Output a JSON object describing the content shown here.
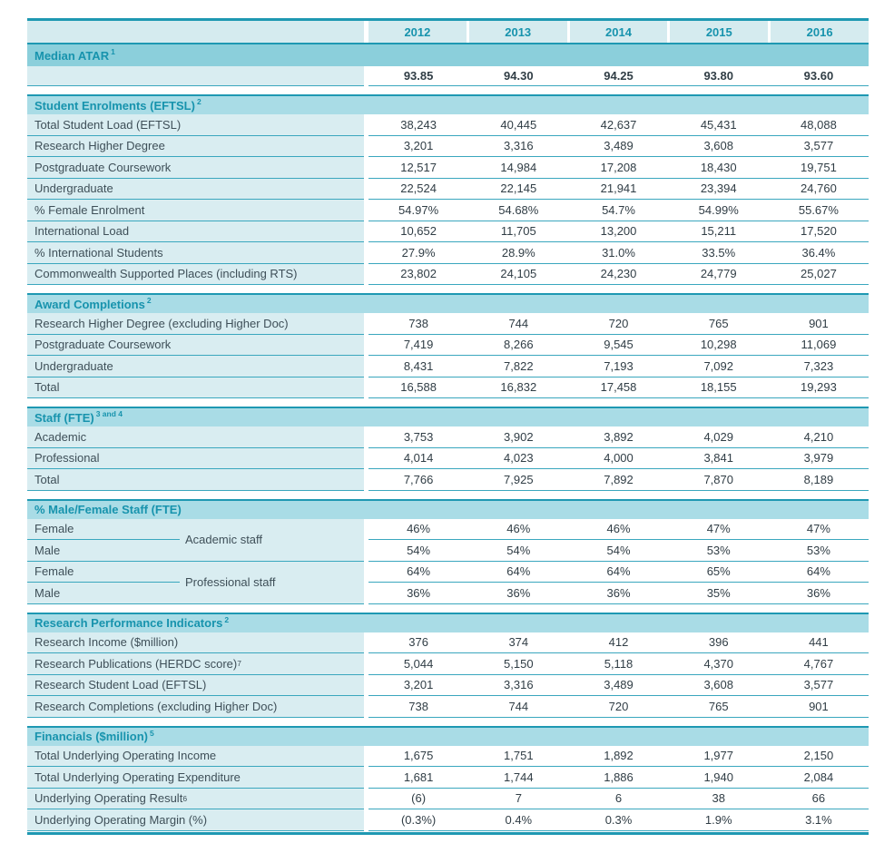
{
  "colors": {
    "dark": "#1e98b2",
    "sep": "#3aa7be",
    "atarBand": "#8bcfdb",
    "band": "#a9dce6",
    "labelBg": "#d9edf1",
    "headerBg": "#d5ebef",
    "teal": "#1793ad",
    "labelText": "#3e4f58",
    "valText": "#303d45"
  },
  "years": [
    "2012",
    "2013",
    "2014",
    "2015",
    "2016"
  ],
  "sections": [
    {
      "title": "Median ATAR",
      "sup": "1",
      "variant": "atar",
      "rows": [
        {
          "label": "",
          "values": [
            "93.85",
            "94.30",
            "94.25",
            "93.80",
            "93.60"
          ],
          "bold": true
        }
      ]
    },
    {
      "title": "Student Enrolments (EFTSL)",
      "sup": "2",
      "rows": [
        {
          "label": "Total Student Load (EFTSL)",
          "values": [
            "38,243",
            "40,445",
            "42,637",
            "45,431",
            "48,088"
          ]
        },
        {
          "label": "Research Higher Degree",
          "values": [
            "3,201",
            "3,316",
            "3,489",
            "3,608",
            "3,577"
          ]
        },
        {
          "label": "Postgraduate Coursework",
          "values": [
            "12,517",
            "14,984",
            "17,208",
            "18,430",
            "19,751"
          ]
        },
        {
          "label": "Undergraduate",
          "values": [
            "22,524",
            "22,145",
            "21,941",
            "23,394",
            "24,760"
          ]
        },
        {
          "label": "% Female Enrolment",
          "values": [
            "54.97%",
            "54.68%",
            "54.7%",
            "54.99%",
            "55.67%"
          ]
        },
        {
          "label": "International Load",
          "values": [
            "10,652",
            "11,705",
            "13,200",
            "15,211",
            "17,520"
          ]
        },
        {
          "label": "% International Students",
          "values": [
            "27.9%",
            "28.9%",
            "31.0%",
            "33.5%",
            "36.4%"
          ]
        },
        {
          "label": "Commonwealth Supported Places (including RTS)",
          "values": [
            "23,802",
            "24,105",
            "24,230",
            "24,779",
            "25,027"
          ]
        }
      ]
    },
    {
      "title": "Award Completions",
      "sup": "2",
      "rows": [
        {
          "label": "Research Higher Degree (excluding Higher Doc)",
          "values": [
            "738",
            "744",
            "720",
            "765",
            "901"
          ]
        },
        {
          "label": "Postgraduate Coursework",
          "values": [
            "7,419",
            "8,266",
            "9,545",
            "10,298",
            "11,069"
          ]
        },
        {
          "label": "Undergraduate",
          "values": [
            "8,431",
            "7,822",
            "7,193",
            "7,092",
            "7,323"
          ]
        },
        {
          "label": "Total",
          "values": [
            "16,588",
            "16,832",
            "17,458",
            "18,155",
            "19,293"
          ]
        }
      ]
    },
    {
      "title": "Staff (FTE)",
      "sup": "3 and 4",
      "rows": [
        {
          "label": "Academic",
          "values": [
            "3,753",
            "3,902",
            "3,892",
            "4,029",
            "4,210"
          ]
        },
        {
          "label": "Professional",
          "values": [
            "4,014",
            "4,023",
            "4,000",
            "3,841",
            "3,979"
          ]
        },
        {
          "label": "Total",
          "values": [
            "7,766",
            "7,925",
            "7,892",
            "7,870",
            "8,189"
          ]
        }
      ]
    },
    {
      "title": "% Male/Female Staff (FTE)",
      "sup": "",
      "grouped": true,
      "groups": [
        {
          "name": "Academic staff",
          "rows": [
            {
              "label": "Female",
              "values": [
                "46%",
                "46%",
                "46%",
                "47%",
                "47%"
              ]
            },
            {
              "label": "Male",
              "values": [
                "54%",
                "54%",
                "54%",
                "53%",
                "53%"
              ]
            }
          ]
        },
        {
          "name": "Professional staff",
          "rows": [
            {
              "label": "Female",
              "values": [
                "64%",
                "64%",
                "64%",
                "65%",
                "64%"
              ]
            },
            {
              "label": "Male",
              "values": [
                "36%",
                "36%",
                "36%",
                "35%",
                "36%"
              ]
            }
          ]
        }
      ]
    },
    {
      "title": "Research Performance Indicators",
      "sup": "2",
      "rows": [
        {
          "label": "Research Income  ($million)",
          "values": [
            "376",
            "374",
            "412",
            "396",
            "441"
          ]
        },
        {
          "label": "Research Publications (HERDC score)",
          "sup": "7",
          "values": [
            "5,044",
            "5,150",
            "5,118",
            "4,370",
            "4,767"
          ]
        },
        {
          "label": "Research Student Load  (EFTSL)",
          "values": [
            "3,201",
            "3,316",
            "3,489",
            "3,608",
            "3,577"
          ]
        },
        {
          "label": "Research Completions (excluding Higher Doc)",
          "values": [
            "738",
            "744",
            "720",
            "765",
            "901"
          ]
        }
      ]
    },
    {
      "title": "Financials ($million)",
      "sup": "5",
      "rows": [
        {
          "label": "Total Underlying Operating Income",
          "values": [
            "1,675",
            "1,751",
            "1,892",
            "1,977",
            "2,150"
          ]
        },
        {
          "label": "Total Underlying Operating Expenditure",
          "values": [
            "1,681",
            "1,744",
            "1,886",
            "1,940",
            "2,084"
          ]
        },
        {
          "label": "Underlying Operating Result",
          "sup": "6",
          "values": [
            "(6)",
            "7",
            "6",
            "38",
            "66"
          ]
        },
        {
          "label": "Underlying Operating Margin (%)",
          "values": [
            "(0.3%)",
            "0.4%",
            "0.3%",
            "1.9%",
            "3.1%"
          ]
        }
      ]
    }
  ]
}
